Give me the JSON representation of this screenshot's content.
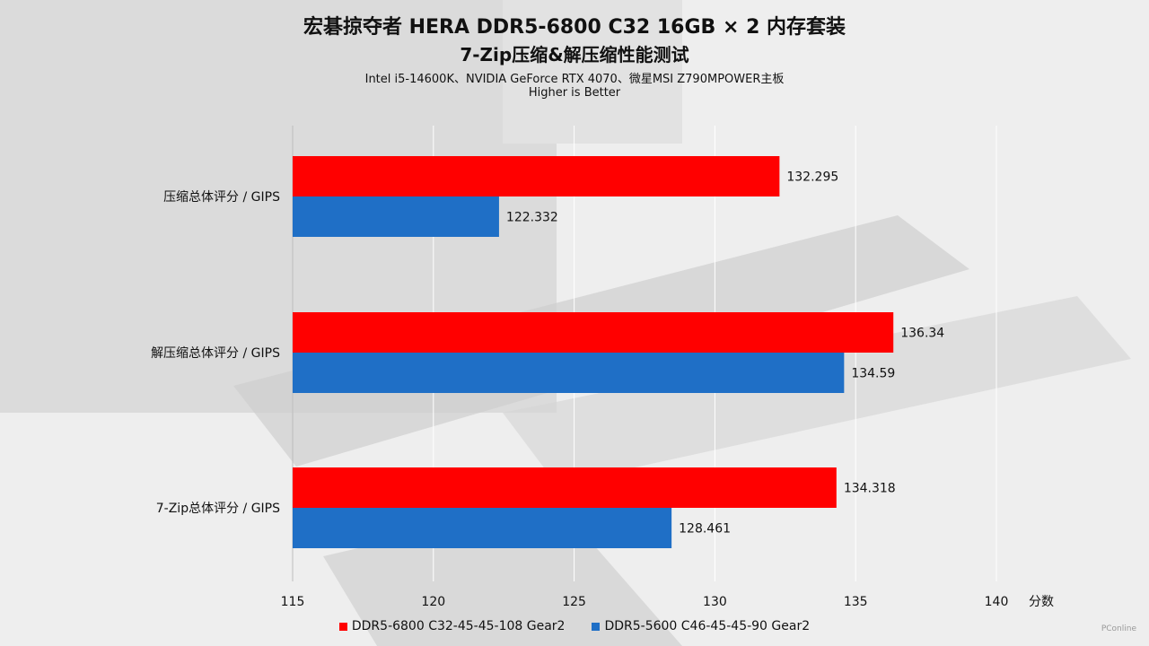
{
  "header": {
    "title": "宏碁掠夺者 HERA DDR5-6800 C32 16GB × 2 内存套装",
    "subtitle": "7-Zip压缩&解压缩性能测试",
    "platform": "Intel i5-14600K、NVIDIA GeForce RTX 4070、微星MSI Z790MPOWER主板",
    "note": "Higher is Better"
  },
  "watermark": "PConline",
  "colors": {
    "series1": "#ff0000",
    "series2": "#1f6fc6"
  },
  "chart_data": {
    "type": "bar",
    "orientation": "horizontal",
    "categories": [
      "压缩总体评分 / GIPS",
      "解压缩总体评分 / GIPS",
      "7-Zip总体评分 / GIPS"
    ],
    "series": [
      {
        "name": "DDR5-6800 C32-45-45-108 Gear2",
        "values": [
          132.295,
          136.34,
          134.318
        ],
        "labels": [
          "132.295",
          "136.34",
          "134.318"
        ]
      },
      {
        "name": "DDR5-5600 C46-45-45-90 Gear2",
        "values": [
          122.332,
          134.59,
          128.461
        ],
        "labels": [
          "122.332",
          "134.59",
          "128.461"
        ]
      }
    ],
    "xlim": [
      115,
      140
    ],
    "xticks": [
      "115",
      "120",
      "125",
      "130",
      "135",
      "140"
    ],
    "xlabel": "分数",
    "grid": true,
    "legend": "bottom"
  }
}
